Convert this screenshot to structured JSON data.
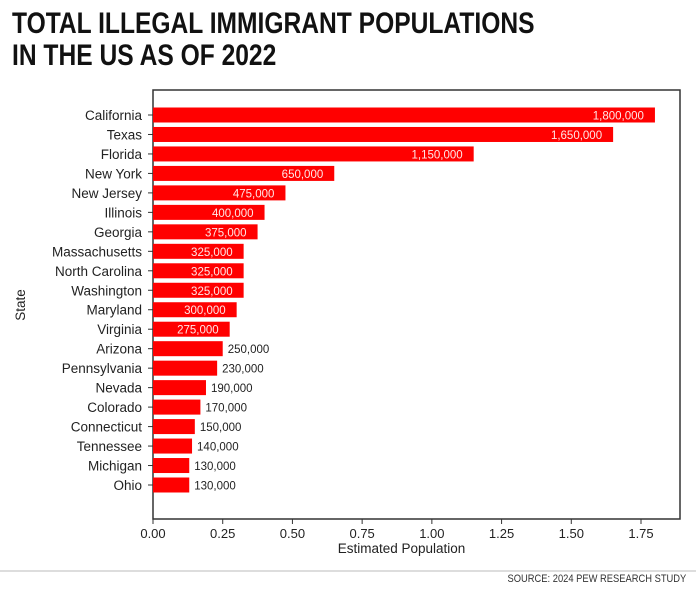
{
  "title_lines": [
    "TOTAL ILLEGAL IMMIGRANT POPULATIONS",
    "IN THE US AS OF 2022"
  ],
  "source": "SOURCE: 2024 PEW RESEARCH STUDY",
  "colors": {
    "bar": "#ff0000",
    "label_inside": "#ffe6e6",
    "label_outside": "#222222"
  },
  "chart_data": {
    "type": "bar",
    "orientation": "horizontal",
    "xlabel": "Estimated Population",
    "ylabel": "State",
    "xlim": [
      0,
      1.9
    ],
    "xticks": [
      "0.00",
      "0.25",
      "0.50",
      "0.75",
      "1.00",
      "1.25",
      "1.50",
      "1.75"
    ],
    "xtick_values": [
      0,
      0.25,
      0.5,
      0.75,
      1.0,
      1.25,
      1.5,
      1.75
    ],
    "grid": false,
    "categories": [
      "California",
      "Texas",
      "Florida",
      "New York",
      "New Jersey",
      "Illinois",
      "Georgia",
      "Massachusetts",
      "North Carolina",
      "Washington",
      "Maryland",
      "Virginia",
      "Arizona",
      "Pennsylvania",
      "Nevada",
      "Colorado",
      "Connecticut",
      "Tennessee",
      "Michigan",
      "Ohio"
    ],
    "values": [
      1800000,
      1650000,
      1150000,
      650000,
      475000,
      400000,
      375000,
      325000,
      325000,
      325000,
      300000,
      275000,
      250000,
      230000,
      190000,
      170000,
      150000,
      140000,
      130000,
      130000
    ],
    "data_labels": [
      "1,800,000",
      "1,650,000",
      "1,150,000",
      "650,000",
      "475,000",
      "400,000",
      "375,000",
      "325,000",
      "325,000",
      "325,000",
      "300,000",
      "275,000",
      "250,000",
      "230,000",
      "190,000",
      "170,000",
      "150,000",
      "140,000",
      "130,000",
      "130,000"
    ]
  }
}
